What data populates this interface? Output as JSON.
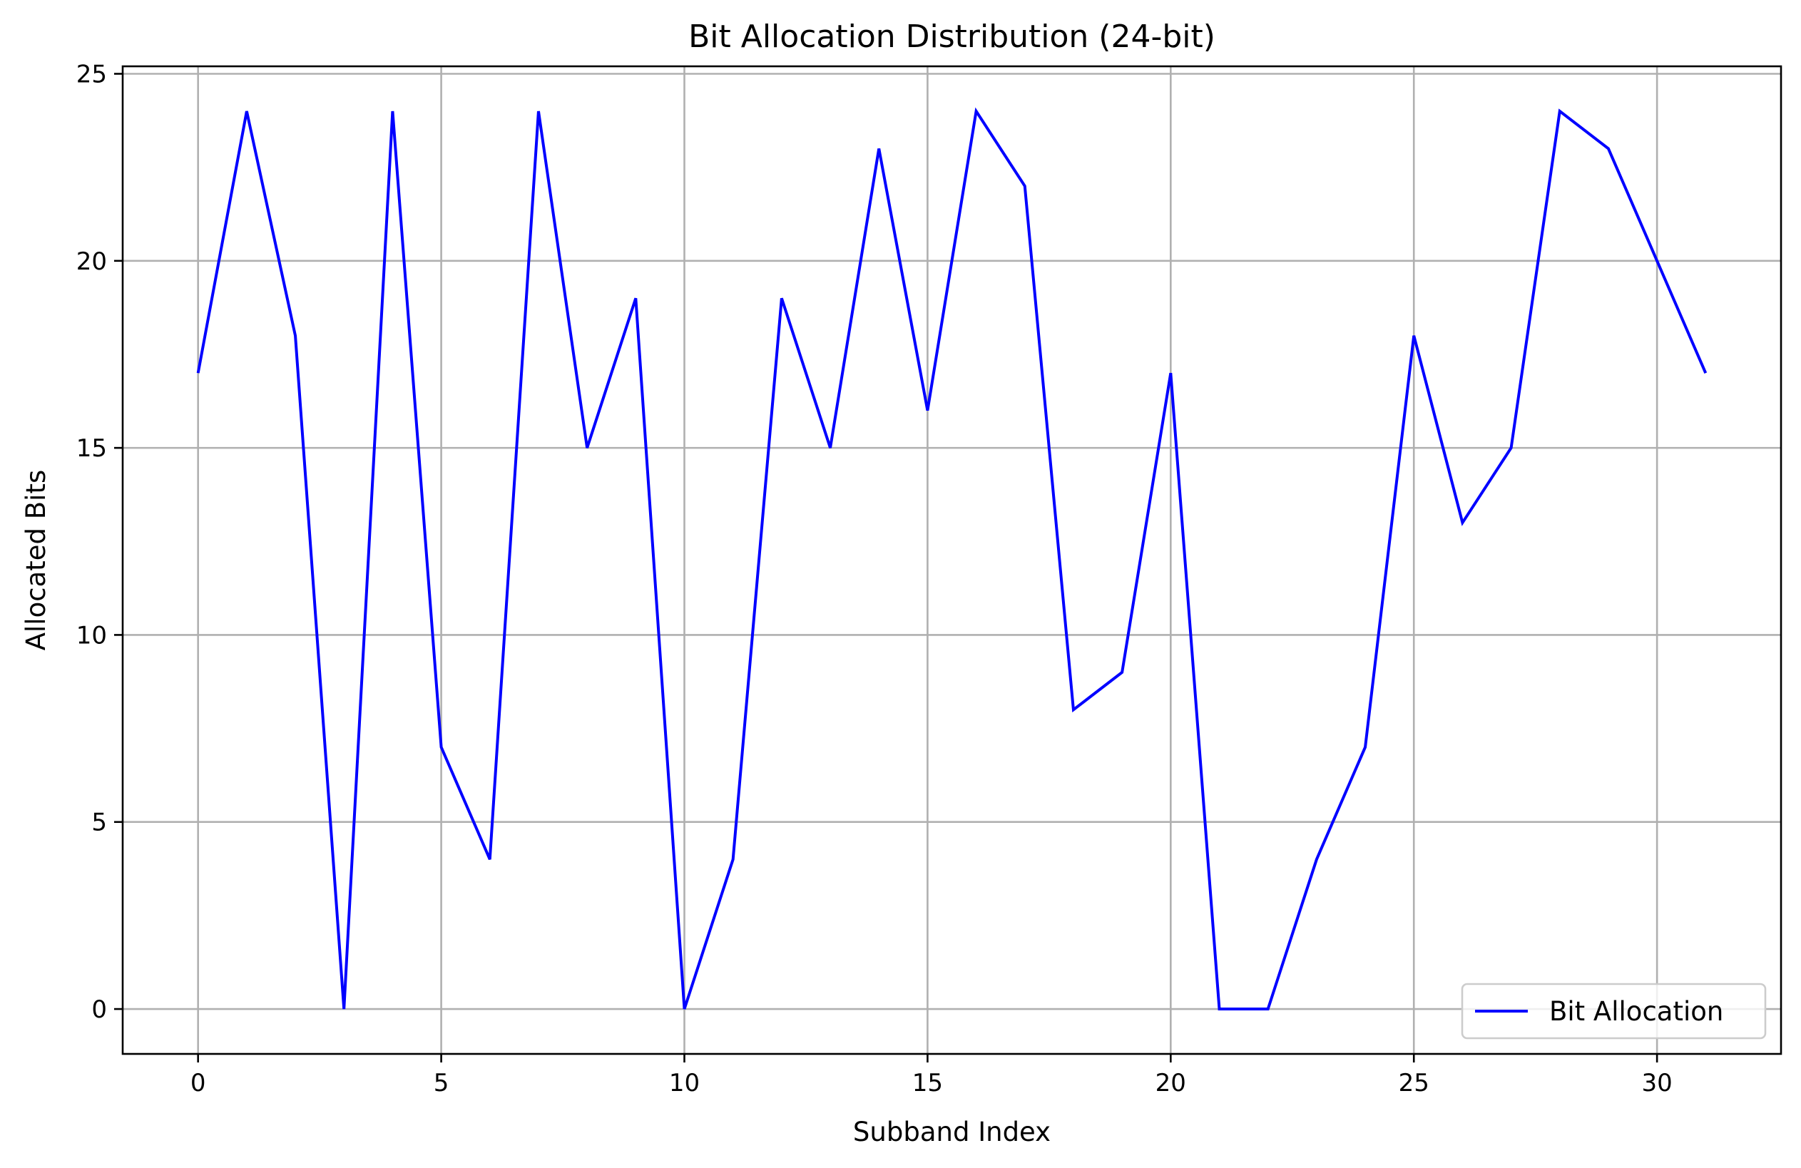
{
  "chart_data": {
    "type": "line",
    "title": "Bit Allocation Distribution (24-bit)",
    "xlabel": "Subband Index",
    "ylabel": "Allocated Bits",
    "xlim": [
      -1.55,
      32.55
    ],
    "ylim": [
      -1.2,
      25.2
    ],
    "xticks": [
      0,
      5,
      10,
      15,
      20,
      25,
      30
    ],
    "yticks": [
      0,
      5,
      10,
      15,
      20,
      25
    ],
    "grid": true,
    "legend_position": "lower-right",
    "series": [
      {
        "name": "Bit Allocation",
        "color": "#0000ff",
        "x": [
          0,
          1,
          2,
          3,
          4,
          5,
          6,
          7,
          8,
          9,
          10,
          11,
          12,
          13,
          14,
          15,
          16,
          17,
          18,
          19,
          20,
          21,
          22,
          23,
          24,
          25,
          26,
          27,
          28,
          29,
          30,
          31
        ],
        "values": [
          17,
          24,
          18,
          0,
          24,
          7,
          4,
          24,
          15,
          19,
          0,
          4,
          19,
          15,
          23,
          16,
          24,
          22,
          8,
          9,
          17,
          0,
          0,
          4,
          7,
          18,
          13,
          15,
          24,
          23,
          20,
          17
        ]
      }
    ]
  }
}
